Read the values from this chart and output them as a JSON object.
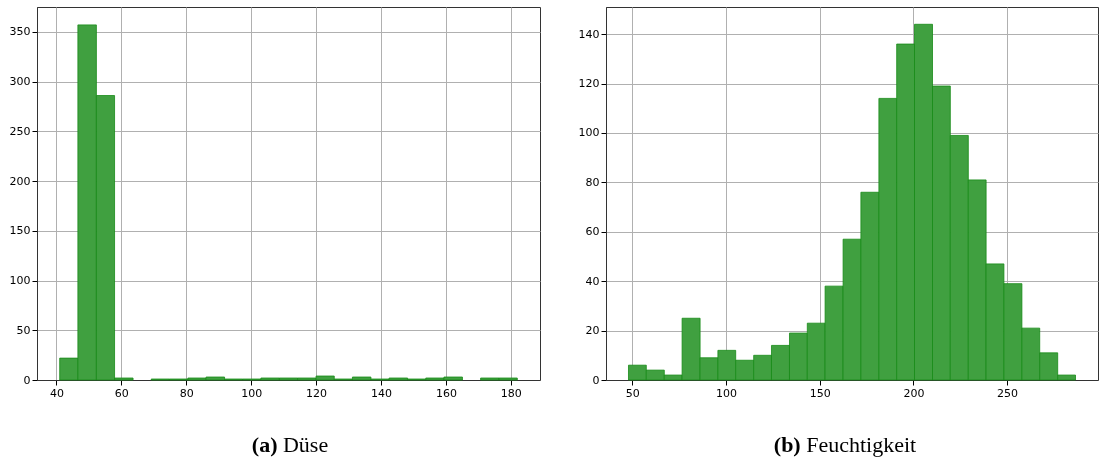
{
  "chart_data": [
    {
      "type": "histogram",
      "title": "(a) Düse",
      "color": "#40a040",
      "bins": [
        41,
        46.6,
        52.3,
        57.9,
        63.6,
        69.2,
        74.8,
        80.5,
        86.1,
        91.8,
        97.4,
        103,
        108.7,
        114.3,
        120,
        125.6,
        131.2,
        136.9,
        142.5,
        148.2,
        153.8,
        159.4,
        165.1,
        170.7,
        176.4,
        182
      ],
      "values": [
        22,
        357,
        286,
        2,
        0,
        1,
        1,
        2,
        3,
        1,
        1,
        2,
        2,
        2,
        4,
        1,
        3,
        1,
        2,
        1,
        2,
        3,
        0,
        2,
        2
      ],
      "xlim": [
        34,
        189
      ],
      "xticks": [
        40,
        60,
        80,
        100,
        120,
        140,
        160,
        180
      ],
      "ylim": [
        0,
        375
      ],
      "yticks": [
        0,
        50,
        100,
        150,
        200,
        250,
        300,
        350
      ],
      "grid": true
    },
    {
      "type": "histogram",
      "title": "(b) Feuchtigkeit",
      "color": "#40a040",
      "bins": [
        48,
        57.5,
        67.1,
        76.6,
        86.2,
        95.7,
        105.2,
        114.8,
        124.3,
        133.9,
        143.4,
        152.9,
        162.5,
        172,
        181.6,
        191.1,
        200.6,
        210.2,
        219.7,
        229.3,
        238.8,
        248.3,
        257.9,
        267.4,
        277,
        286.5
      ],
      "values": [
        6,
        4,
        2,
        25,
        9,
        12,
        8,
        10,
        14,
        19,
        23,
        38,
        57,
        76,
        114,
        136,
        144,
        119,
        99,
        81,
        47,
        39,
        21,
        11,
        2
      ],
      "xlim": [
        36,
        298.5
      ],
      "xticks": [
        50,
        100,
        150,
        200,
        250
      ],
      "ylim": [
        0,
        151
      ],
      "yticks": [
        0,
        20,
        40,
        60,
        80,
        100,
        120,
        140
      ],
      "grid": true
    }
  ]
}
